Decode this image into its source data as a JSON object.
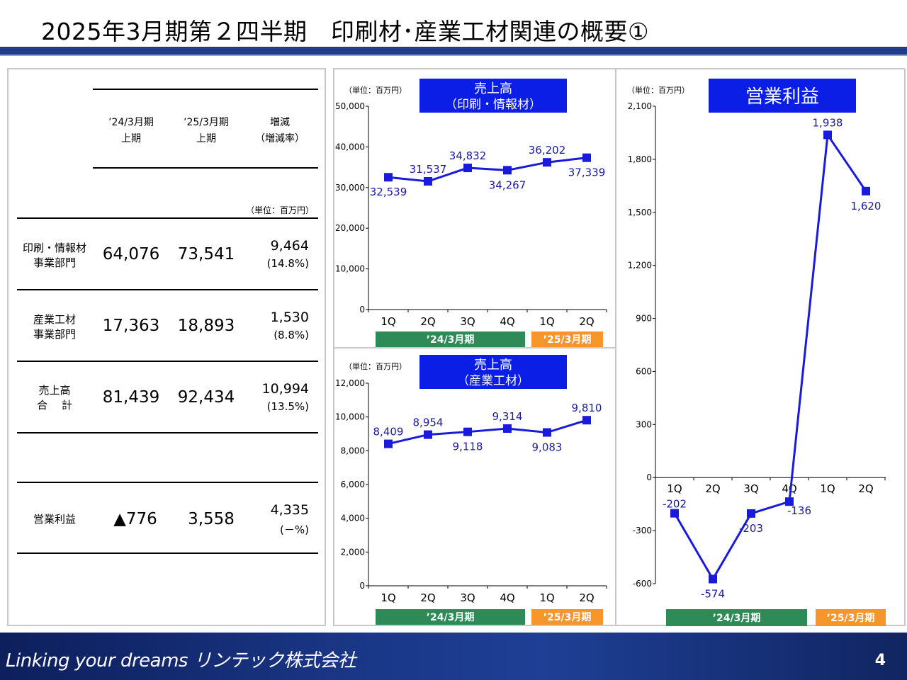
{
  "title": "2025年3月期第２四半期　印刷材･産業工材関連の概要①",
  "footer": {
    "logo": "Linking your dreams  リンテック株式会社",
    "page": "4"
  },
  "table": {
    "headers": [
      "’24/3月期\n上期",
      "’25/3月期\n上期",
      "増減\n（増減率）"
    ],
    "h1a": "’24/3月期",
    "h1b": "上期",
    "h2a": "’25/3月期",
    "h2b": "上期",
    "h3a": "増減",
    "h3b": "（増減率）",
    "unit": "（単位：百万円）",
    "rows": [
      {
        "label1": "印刷・情報材",
        "label2": "事業部門",
        "v24": "64,076",
        "v25": "73,541",
        "diff": "9,464",
        "rate": "(14.8%)"
      },
      {
        "label1": "産業工材",
        "label2": "事業部門",
        "v24": "17,363",
        "v25": "18,893",
        "diff": "1,530",
        "rate": "(8.8%)"
      },
      {
        "label1": "売上高",
        "label2": "合　 計",
        "v24": "81,439",
        "v25": "92,434",
        "diff": "10,994",
        "rate": "(13.5%)"
      },
      {
        "label1": "営業利益",
        "label2": "",
        "v24": "▲776",
        "v25": "3,558",
        "diff": "4,335",
        "rate": "(－%)"
      }
    ]
  },
  "colors": {
    "line": "#1a1adc",
    "label": "#1a1a9e",
    "title_box": "#0a1ee6",
    "period_24": "#2e8b57",
    "period_25": "#f5952a"
  },
  "chart_data": [
    {
      "type": "line",
      "title": "売上高",
      "subtitle": "（印刷・情報材）",
      "unit": "（単位：百万円）",
      "categories": [
        "1Q",
        "2Q",
        "3Q",
        "4Q",
        "1Q",
        "2Q"
      ],
      "periods": [
        "’24/3月期",
        "’25/3月期"
      ],
      "values": [
        32539,
        31537,
        34832,
        34267,
        36202,
        37339
      ],
      "labels": [
        "32,539",
        "31,537",
        "34,832",
        "34,267",
        "36,202",
        "37,339"
      ],
      "ylim": [
        0,
        50000
      ],
      "yticks": [
        0,
        10000,
        20000,
        30000,
        40000,
        50000
      ],
      "ytick_labels": [
        "0",
        "10,000",
        "20,000",
        "30,000",
        "40,000",
        "50,000"
      ]
    },
    {
      "type": "line",
      "title": "売上高",
      "subtitle": "（産業工材）",
      "unit": "（単位：百万円）",
      "categories": [
        "1Q",
        "2Q",
        "3Q",
        "4Q",
        "1Q",
        "2Q"
      ],
      "periods": [
        "’24/3月期",
        "’25/3月期"
      ],
      "values": [
        8409,
        8954,
        9118,
        9314,
        9083,
        9810
      ],
      "labels": [
        "8,409",
        "8,954",
        "9,118",
        "9,314",
        "9,083",
        "9,810"
      ],
      "ylim": [
        0,
        12000
      ],
      "yticks": [
        0,
        2000,
        4000,
        6000,
        8000,
        10000,
        12000
      ],
      "ytick_labels": [
        "0",
        "2,000",
        "4,000",
        "6,000",
        "8,000",
        "10,000",
        "12,000"
      ]
    },
    {
      "type": "line",
      "title": "営業利益",
      "subtitle": "",
      "unit": "（単位：百万円）",
      "categories": [
        "1Q",
        "2Q",
        "3Q",
        "4Q",
        "1Q",
        "2Q"
      ],
      "periods": [
        "’24/3月期",
        "’25/3月期"
      ],
      "values": [
        -202,
        -574,
        -203,
        -136,
        1938,
        1620
      ],
      "labels": [
        "-202",
        "-574",
        "-203",
        "-136",
        "1,938",
        "1,620"
      ],
      "ylim": [
        -600,
        2100
      ],
      "yticks": [
        -600,
        -300,
        0,
        300,
        600,
        900,
        1200,
        1500,
        1800,
        2100
      ],
      "ytick_labels": [
        "-600",
        "-300",
        "0",
        "300",
        "600",
        "900",
        "1,200",
        "1,500",
        "1,800",
        "2,100"
      ]
    }
  ]
}
